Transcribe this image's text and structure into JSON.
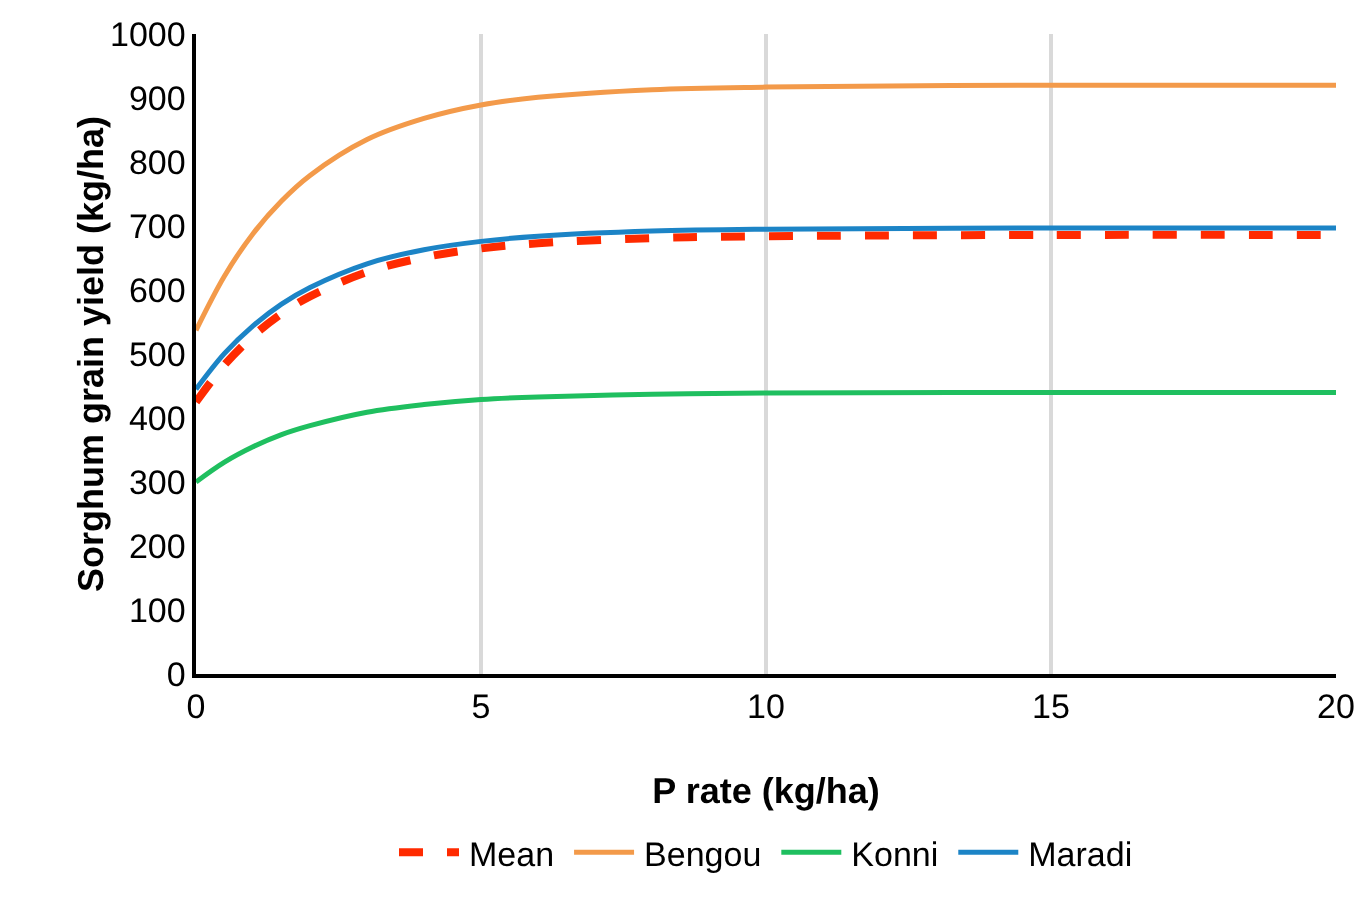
{
  "chart_data": {
    "type": "line",
    "xlabel": "P rate (kg/ha)",
    "ylabel": "Sorghum grain yield (kg/ha)",
    "x": [
      0,
      0.5,
      1,
      1.5,
      2,
      3,
      4,
      5,
      6,
      8,
      10,
      15,
      20
    ],
    "series": [
      {
        "name": "Mean",
        "color": "#ff2a00",
        "line_style": "dashed",
        "values": [
          425,
          483,
          528,
          563,
          590,
          628,
          651,
          665,
          673,
          681,
          684,
          686,
          686
        ]
      },
      {
        "name": "Bengou",
        "color": "#f39a4a",
        "values": [
          537,
          622,
          688,
          739,
          779,
          835,
          868,
          889,
          901,
          913,
          917,
          920,
          920
        ]
      },
      {
        "name": "Konni",
        "color": "#1fbf5f",
        "values": [
          300,
          331,
          355,
          374,
          388,
          409,
          421,
          429,
          433,
          437,
          439,
          440,
          440
        ]
      },
      {
        "name": "Maradi",
        "color": "#1c84c6",
        "values": [
          445,
          501,
          544,
          578,
          604,
          641,
          663,
          676,
          684,
          692,
          695,
          697,
          697
        ]
      }
    ],
    "xlim": [
      0,
      20
    ],
    "xticks": [
      0,
      5,
      10,
      15,
      20
    ],
    "ylim": [
      0,
      1000
    ],
    "yticks": [
      0,
      100,
      200,
      300,
      400,
      500,
      600,
      700,
      800,
      900,
      1000
    ],
    "grid": "x",
    "legend": "bottom"
  }
}
